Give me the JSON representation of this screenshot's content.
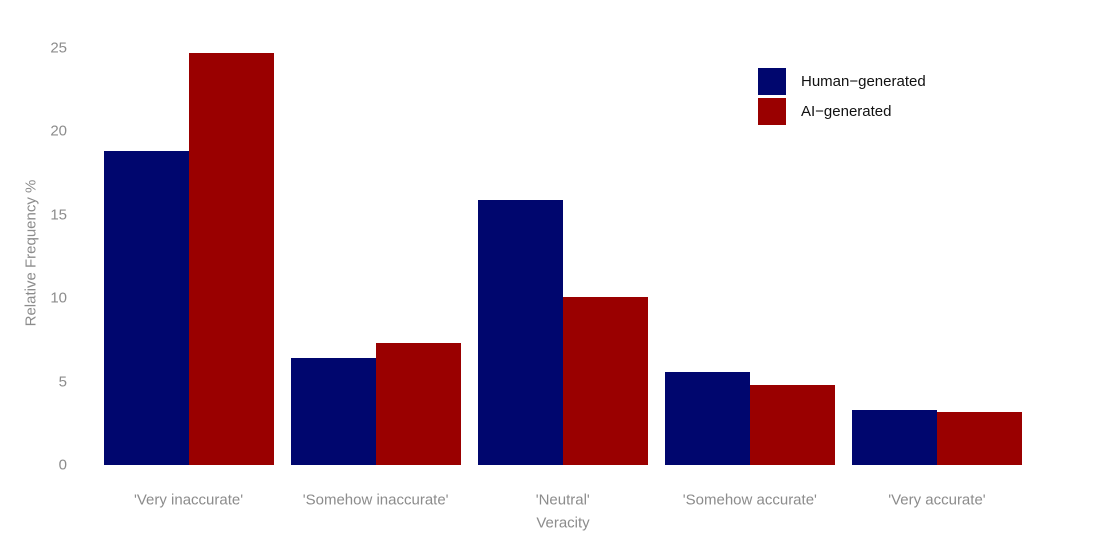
{
  "chart_data": {
    "type": "bar",
    "title": "",
    "categories": [
      "'Very inaccurate'",
      "'Somehow inaccurate'",
      "'Neutral'",
      "'Somehow accurate'",
      "'Very accurate'"
    ],
    "series": [
      {
        "name": "Human−generated",
        "color": "#00066e",
        "values": [
          18.8,
          6.4,
          15.9,
          5.6,
          3.3
        ]
      },
      {
        "name": "AI−generated",
        "color": "#9a0000",
        "values": [
          24.7,
          7.3,
          10.1,
          4.8,
          3.2
        ]
      }
    ],
    "xlabel": "Veracity",
    "ylabel": "Relative Frequency %",
    "ylim": [
      0,
      25
    ],
    "yticks": [
      0,
      5,
      10,
      15,
      20,
      25
    ],
    "grid": false,
    "legend_position": "top-right",
    "colors": {
      "axis_text": "#8c8c8c",
      "legend_text": "#111111",
      "background": "#ffffff"
    }
  }
}
